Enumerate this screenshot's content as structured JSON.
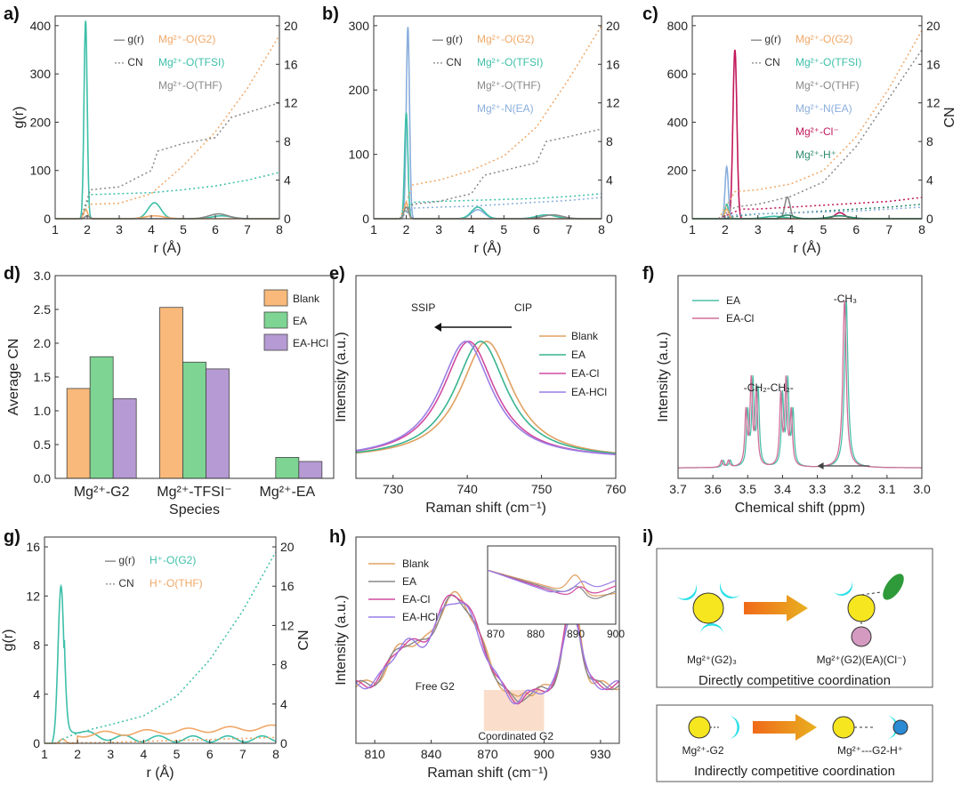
{
  "panels": {
    "a": "a)",
    "b": "b)",
    "c": "c)",
    "d": "d)",
    "e": "e)",
    "f": "f)",
    "g": "g)",
    "h": "h)",
    "i": "i)"
  },
  "colors": {
    "g2": "#f0a868",
    "tfsi": "#3dbfa8",
    "thf": "#888888",
    "ea": "#8aaedc",
    "cl": "#c2185b",
    "h": "#2e8b6e",
    "blank": "#f8b97a",
    "ea_bar": "#7ed492",
    "eahcl": "#b59ad4",
    "raman_blank": "#e0a060",
    "raman_ea": "#38b48f",
    "raman_ecl": "#d04aa0",
    "raman_ehcl": "#9a7de6",
    "nmr_ea": "#4bbfa8",
    "nmr_ecl": "#d0709a"
  },
  "chart_data": [
    {
      "id": "a",
      "type": "line",
      "xlabel": "r (Å)",
      "ylabel": "g(r)",
      "y2label": "",
      "xlim": [
        1,
        8
      ],
      "ylim": [
        0,
        420
      ],
      "y2lim": [
        0,
        21
      ],
      "xticks": [
        "1",
        "2",
        "3",
        "4",
        "5",
        "6",
        "7",
        "8"
      ],
      "yticks": [
        "0",
        "100",
        "200",
        "300",
        "400"
      ],
      "y2ticks": [
        "0",
        "4",
        "8",
        "12",
        "16",
        "20"
      ],
      "legend_style": [
        "— g(r)",
        "··· CN"
      ],
      "legend_species": [
        "Mg²⁺-O(G2)",
        "Mg²⁺-O(TFSI)",
        "Mg²⁺-O(THF)"
      ],
      "series": [
        {
          "name": "Mg²⁺-O(TFSI)",
          "kind": "g",
          "color": "tfsi",
          "peaks": [
            [
              1.95,
              410,
              0.05
            ],
            [
              4.1,
              33,
              0.2
            ],
            [
              6.2,
              6,
              0.3
            ]
          ]
        },
        {
          "name": "Mg²⁺-O(G2)",
          "kind": "g",
          "color": "g2",
          "peaks": [
            [
              1.95,
              20,
              0.06
            ],
            [
              4.1,
              6,
              0.3
            ]
          ]
        },
        {
          "name": "Mg²⁺-O(THF)",
          "kind": "g",
          "color": "thf",
          "peaks": [
            [
              2.0,
              6,
              0.07
            ],
            [
              6.1,
              10,
              0.3
            ]
          ]
        },
        {
          "name": "Mg²⁺-O(TFSI)",
          "kind": "cn",
          "color": "tfsi",
          "x": [
            1.8,
            2.1,
            3,
            4,
            5,
            6,
            7,
            8
          ],
          "y": [
            0,
            2.5,
            2.6,
            2.7,
            3.0,
            3.4,
            4.0,
            4.8
          ]
        },
        {
          "name": "Mg²⁺-O(G2)",
          "kind": "cn",
          "color": "g2",
          "x": [
            1.8,
            2.1,
            3,
            4,
            5,
            6,
            7,
            8
          ],
          "y": [
            0,
            1.5,
            1.6,
            2.6,
            5.5,
            9.0,
            13.5,
            19
          ]
        },
        {
          "name": "Mg²⁺-O(THF)",
          "kind": "cn",
          "color": "thf",
          "x": [
            1.8,
            2.1,
            3,
            4,
            4.2,
            5,
            6,
            6.5,
            7,
            8
          ],
          "y": [
            0,
            3.0,
            3.3,
            5.0,
            7.0,
            7.8,
            8.4,
            10.5,
            11.0,
            12.0
          ]
        }
      ]
    },
    {
      "id": "b",
      "type": "line",
      "xlabel": "r (Å)",
      "ylabel": "",
      "y2label": "",
      "xlim": [
        1,
        8
      ],
      "ylim": [
        0,
        315
      ],
      "y2lim": [
        0,
        21
      ],
      "xticks": [
        "1",
        "2",
        "3",
        "4",
        "5",
        "6",
        "7",
        "8"
      ],
      "yticks": [
        "0",
        "100",
        "200",
        "300"
      ],
      "y2ticks": [
        "0",
        "4",
        "8",
        "12",
        "16",
        "20"
      ],
      "legend_style": [
        "— g(r)",
        "··· CN"
      ],
      "legend_species": [
        "Mg²⁺-O(G2)",
        "Mg²⁺-O(TFSI)",
        "Mg²⁺-O(THF)",
        "Mg²⁺-N(EA)"
      ],
      "series": [
        {
          "name": "Mg²⁺-N(EA)",
          "kind": "g",
          "color": "ea",
          "peaks": [
            [
              2.05,
              298,
              0.05
            ],
            [
              4.2,
              14,
              0.2
            ]
          ]
        },
        {
          "name": "Mg²⁺-O(TFSI)",
          "kind": "g",
          "color": "tfsi",
          "peaks": [
            [
              2.0,
              165,
              0.05
            ],
            [
              4.2,
              18,
              0.2
            ],
            [
              6.3,
              6,
              0.3
            ]
          ]
        },
        {
          "name": "Mg²⁺-O(G2)",
          "kind": "g",
          "color": "g2",
          "peaks": [
            [
              2.0,
              25,
              0.06
            ]
          ]
        },
        {
          "name": "Mg²⁺-O(THF)",
          "kind": "g",
          "color": "thf",
          "peaks": [
            [
              2.0,
              18,
              0.07
            ],
            [
              6.5,
              6,
              0.3
            ]
          ]
        },
        {
          "name": "Mg²⁺-N(EA)",
          "kind": "cn",
          "color": "ea",
          "x": [
            1.8,
            2.2,
            3,
            4,
            5,
            6,
            7,
            8
          ],
          "y": [
            0,
            1.1,
            1.2,
            1.3,
            1.5,
            1.7,
            1.9,
            2.2
          ]
        },
        {
          "name": "Mg²⁺-O(TFSI)",
          "kind": "cn",
          "color": "tfsi",
          "x": [
            1.8,
            2.2,
            3,
            4,
            5,
            6,
            7,
            8
          ],
          "y": [
            0,
            1.7,
            1.8,
            1.9,
            2.0,
            2.1,
            2.3,
            2.6
          ]
        },
        {
          "name": "Mg²⁺-O(G2)",
          "kind": "cn",
          "color": "g2",
          "x": [
            1.8,
            2.2,
            3,
            4,
            5,
            6,
            7,
            8
          ],
          "y": [
            0,
            3.5,
            4.0,
            5.0,
            6.5,
            9.5,
            14.5,
            20
          ]
        },
        {
          "name": "Mg²⁺-O(THF)",
          "kind": "cn",
          "color": "thf",
          "x": [
            1.8,
            2.2,
            3,
            4,
            4.4,
            5,
            6,
            6.3,
            7,
            8
          ],
          "y": [
            0,
            1.5,
            1.8,
            2.6,
            4.5,
            5.0,
            5.8,
            8.0,
            8.5,
            9.3
          ]
        }
      ]
    },
    {
      "id": "c",
      "type": "line",
      "xlabel": "r (Å)",
      "ylabel": "",
      "y2label": "CN",
      "xlim": [
        1,
        8
      ],
      "ylim": [
        0,
        840
      ],
      "y2lim": [
        0,
        21
      ],
      "xticks": [
        "1",
        "2",
        "3",
        "4",
        "5",
        "6",
        "7",
        "8"
      ],
      "yticks": [
        "0",
        "200",
        "400",
        "600",
        "800"
      ],
      "y2ticks": [
        "0",
        "4",
        "8",
        "12",
        "16",
        "20"
      ],
      "legend_style": [
        "— g(r)",
        "··· CN"
      ],
      "legend_species": [
        "Mg²⁺-O(G2)",
        "Mg²⁺-O(TFSI)",
        "Mg²⁺-O(THF)",
        "Mg²⁺-N(EA)",
        "Mg²⁺-Cl⁻",
        "Mg²⁺-H⁺"
      ],
      "series": [
        {
          "name": "Mg²⁺-Cl⁻",
          "kind": "g",
          "color": "cl",
          "peaks": [
            [
              2.3,
              700,
              0.06
            ],
            [
              5.5,
              25,
              0.15
            ]
          ]
        },
        {
          "name": "Mg²⁺-N(EA)",
          "kind": "g",
          "color": "ea",
          "peaks": [
            [
              2.05,
              215,
              0.05
            ]
          ]
        },
        {
          "name": "Mg²⁺-O(THF)",
          "kind": "g",
          "color": "thf",
          "peaks": [
            [
              3.9,
              90,
              0.08
            ],
            [
              2.05,
              30,
              0.05
            ]
          ]
        },
        {
          "name": "Mg²⁺-O(TFSI)",
          "kind": "g",
          "color": "tfsi",
          "peaks": [
            [
              2.05,
              60,
              0.05
            ],
            [
              3.5,
              10,
              0.3
            ]
          ]
        },
        {
          "name": "Mg²⁺-O(G2)",
          "kind": "g",
          "color": "g2",
          "peaks": [
            [
              2.05,
              40,
              0.06
            ]
          ]
        },
        {
          "name": "Mg²⁺-H⁺",
          "kind": "g",
          "color": "h",
          "peaks": [
            [
              3.9,
              15,
              0.2
            ],
            [
              5.5,
              12,
              0.3
            ]
          ]
        },
        {
          "name": "Mg²⁺-O(G2)",
          "kind": "cn",
          "color": "g2",
          "x": [
            1.8,
            2.3,
            3,
            4,
            5,
            6,
            7,
            8
          ],
          "y": [
            0,
            2.8,
            3.0,
            3.6,
            5.0,
            8.5,
            13.5,
            19.5
          ]
        },
        {
          "name": "Mg²⁺-O(THF)",
          "kind": "cn",
          "color": "thf",
          "x": [
            1.8,
            2.3,
            3,
            4,
            5,
            6,
            7,
            8
          ],
          "y": [
            0,
            1.2,
            1.5,
            2.3,
            3.8,
            7.5,
            12.5,
            17.5
          ]
        },
        {
          "name": "Mg²⁺-Cl⁻",
          "kind": "cn",
          "color": "cl",
          "x": [
            1.8,
            2.5,
            3,
            4,
            5,
            6,
            7,
            8
          ],
          "y": [
            0,
            1.0,
            1.0,
            1.2,
            1.4,
            1.6,
            1.8,
            2.2
          ]
        },
        {
          "name": "Mg²⁺-H⁺",
          "kind": "cn",
          "color": "h",
          "x": [
            1.8,
            2.5,
            3,
            4,
            5,
            6,
            7,
            8
          ],
          "y": [
            0,
            0.3,
            0.5,
            0.6,
            0.8,
            1.0,
            1.2,
            1.5
          ]
        },
        {
          "name": "Mg²⁺-N(EA)",
          "kind": "cn",
          "color": "ea",
          "x": [
            1.8,
            2.3,
            3,
            4,
            5,
            6,
            7,
            8
          ],
          "y": [
            0,
            0.4,
            0.5,
            0.6,
            0.7,
            0.8,
            1.0,
            1.2
          ]
        }
      ]
    },
    {
      "id": "d",
      "type": "bar",
      "xlabel": "Species",
      "ylabel": "Average CN",
      "ylim": [
        0,
        3.0
      ],
      "yticks": [
        "0.0",
        "0.5",
        "1.0",
        "1.5",
        "2.0",
        "2.5",
        "3.0"
      ],
      "categories": [
        "Mg²⁺-G2",
        "Mg²⁺-TFSI⁻",
        "Mg²⁺-EA"
      ],
      "series": [
        {
          "name": "Blank",
          "color": "blank",
          "values": [
            1.33,
            2.53,
            0
          ]
        },
        {
          "name": "EA",
          "color": "ea_bar",
          "values": [
            1.8,
            1.72,
            0.31
          ]
        },
        {
          "name": "EA-HCl",
          "color": "eahcl",
          "values": [
            1.18,
            1.62,
            0.25
          ]
        }
      ]
    },
    {
      "id": "e",
      "type": "line",
      "xlabel": "Raman shift (cm⁻¹)",
      "ylabel": "Intensity (a.u.)",
      "xlim": [
        725,
        760
      ],
      "xticks": [
        "730",
        "740",
        "750",
        "760"
      ],
      "annotations": [
        "SSIP",
        "CIP"
      ],
      "series": [
        {
          "name": "Blank",
          "color": "raman_blank",
          "center": 742.6
        },
        {
          "name": "EA",
          "color": "raman_ea",
          "center": 741.8
        },
        {
          "name": "EA-Cl",
          "color": "raman_ecl",
          "center": 740.2
        },
        {
          "name": "EA-HCl",
          "color": "raman_ehcl",
          "center": 739.8
        }
      ]
    },
    {
      "id": "f",
      "type": "line",
      "xlabel": "Chemical shift (ppm)",
      "ylabel": "Intensity (a.u.)",
      "xlim": [
        3.7,
        3.0
      ],
      "xticks": [
        "3.7",
        "3.6",
        "3.5",
        "3.4",
        "3.3",
        "3.2",
        "3.1",
        "3.0"
      ],
      "annotations": [
        "-CH₂-CH₂-",
        "-CH₃"
      ],
      "series": [
        {
          "name": "EA",
          "color": "nmr_ea",
          "shift": -0.005
        },
        {
          "name": "EA-Cl",
          "color": "nmr_ecl",
          "shift": 0
        }
      ]
    },
    {
      "id": "g",
      "type": "line",
      "xlabel": "r (Å)",
      "ylabel": "g(r)",
      "y2label": "CN",
      "xlim": [
        1,
        8
      ],
      "ylim": [
        0,
        16.8
      ],
      "y2lim": [
        0,
        21
      ],
      "xticks": [
        "1",
        "2",
        "3",
        "4",
        "5",
        "6",
        "7",
        "8"
      ],
      "yticks": [
        "0",
        "4",
        "8",
        "12",
        "16"
      ],
      "y2ticks": [
        "0",
        "4",
        "8",
        "12",
        "16",
        "20"
      ],
      "legend_style": [
        "— g(r)",
        "··· CN"
      ],
      "legend_species": [
        "H⁺-O(G2)",
        "H⁺-O(THF)"
      ],
      "series": [
        {
          "name": "H⁺-O(G2)",
          "kind": "g",
          "color": "tfsi"
        },
        {
          "name": "H⁺-O(THF)",
          "kind": "g",
          "color": "g2"
        },
        {
          "name": "H⁺-O(G2)",
          "kind": "cn",
          "color": "tfsi",
          "x": [
            1.3,
            1.8,
            2.5,
            3,
            4,
            5,
            6,
            7,
            8
          ],
          "y": [
            0,
            0.8,
            1.5,
            1.9,
            2.8,
            4.8,
            8.5,
            13.5,
            19.5
          ]
        },
        {
          "name": "H⁺-O(THF)",
          "kind": "cn",
          "color": "g2",
          "x": [
            1.3,
            1.8,
            3,
            4,
            5,
            6,
            7,
            8
          ],
          "y": [
            0,
            0.05,
            0.1,
            0.2,
            0.3,
            0.4,
            0.5,
            0.6
          ]
        }
      ]
    },
    {
      "id": "h",
      "type": "line",
      "xlabel": "Raman shift (cm⁻¹)",
      "ylabel": "Intensity (a.u.)",
      "xlim": [
        800,
        940
      ],
      "xticks": [
        "810",
        "840",
        "870",
        "900",
        "930"
      ],
      "inset_xticks": [
        "870",
        "880",
        "890",
        "900"
      ],
      "annotations": [
        "Free G2",
        "Coordinated G2"
      ],
      "series": [
        {
          "name": "Blank",
          "color": "raman_blank"
        },
        {
          "name": "EA",
          "color": "thf"
        },
        {
          "name": "EA-Cl",
          "color": "raman_ecl"
        },
        {
          "name": "EA-HCl",
          "color": "raman_ehcl"
        }
      ]
    }
  ],
  "schemes": {
    "direct": {
      "left": "Mg²⁺(G2)₃",
      "right": "Mg²⁺(G2)(EA)(Cl⁻)",
      "caption": "Directly competitive coordination"
    },
    "indirect": {
      "left": "Mg²⁺-G2",
      "right": "Mg²⁺---G2-H⁺",
      "caption": "Indirectly competitive coordination"
    }
  }
}
